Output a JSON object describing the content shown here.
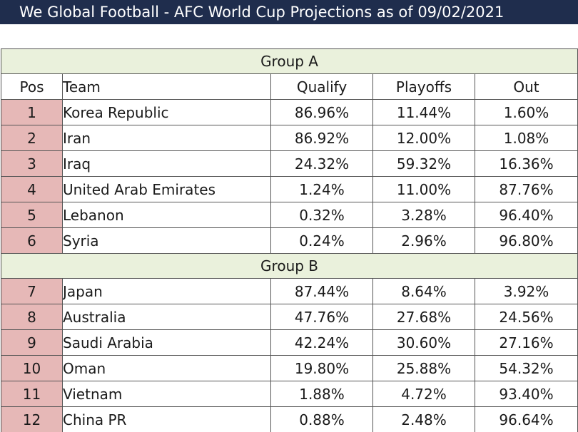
{
  "title": "We Global Football - AFC World Cup Projections as of 09/02/2021",
  "columns": {
    "pos": "Pos",
    "team": "Team",
    "qualify": "Qualify",
    "playoffs": "Playoffs",
    "out": "Out"
  },
  "groups": [
    {
      "name": "Group A",
      "rows": [
        {
          "pos": "1",
          "team": "Korea Republic",
          "qualify": "86.96%",
          "playoffs": "11.44%",
          "out": "1.60%"
        },
        {
          "pos": "2",
          "team": "Iran",
          "qualify": "86.92%",
          "playoffs": "12.00%",
          "out": "1.08%"
        },
        {
          "pos": "3",
          "team": "Iraq",
          "qualify": "24.32%",
          "playoffs": "59.32%",
          "out": "16.36%"
        },
        {
          "pos": "4",
          "team": "United Arab Emirates",
          "qualify": "1.24%",
          "playoffs": "11.00%",
          "out": "87.76%"
        },
        {
          "pos": "5",
          "team": "Lebanon",
          "qualify": "0.32%",
          "playoffs": "3.28%",
          "out": "96.40%"
        },
        {
          "pos": "6",
          "team": "Syria",
          "qualify": "0.24%",
          "playoffs": "2.96%",
          "out": "96.80%"
        }
      ]
    },
    {
      "name": "Group B",
      "rows": [
        {
          "pos": "7",
          "team": "Japan",
          "qualify": "87.44%",
          "playoffs": "8.64%",
          "out": "3.92%"
        },
        {
          "pos": "8",
          "team": "Australia",
          "qualify": "47.76%",
          "playoffs": "27.68%",
          "out": "24.56%"
        },
        {
          "pos": "9",
          "team": "Saudi Arabia",
          "qualify": "42.24%",
          "playoffs": "30.60%",
          "out": "27.16%"
        },
        {
          "pos": "10",
          "team": "Oman",
          "qualify": "19.80%",
          "playoffs": "25.88%",
          "out": "54.32%"
        },
        {
          "pos": "11",
          "team": "Vietnam",
          "qualify": "1.88%",
          "playoffs": "4.72%",
          "out": "93.40%"
        },
        {
          "pos": "12",
          "team": "China PR",
          "qualify": "0.88%",
          "playoffs": "2.48%",
          "out": "96.64%"
        }
      ]
    }
  ],
  "colors": {
    "title_bg": "#1f2d4d",
    "group_bg": "#eaf1dc",
    "pos_bg": "#e6b8b7"
  }
}
